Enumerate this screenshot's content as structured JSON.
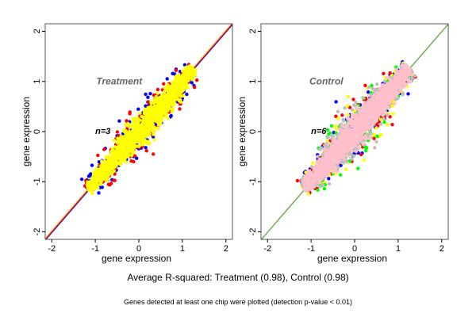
{
  "chart_data": [
    {
      "type": "scatter",
      "title": "Treatment",
      "annotation": "n=3",
      "xlabel": "gene expression",
      "ylabel": "gene expression",
      "xlim": [
        -2.15,
        2.15
      ],
      "ylim": [
        -2.15,
        2.15
      ],
      "xticks": [
        "-2",
        "-1",
        "0",
        "1",
        "2"
      ],
      "yticks": [
        "-2",
        "-1",
        "0",
        "1",
        "2"
      ],
      "cloud_range": [
        -1.15,
        1.25
      ],
      "series_colors": [
        "#0000ff",
        "#ff0000",
        "#ffff00"
      ],
      "diagonal_colors": [
        "#0000ff",
        "#ff0000",
        "#ffa500"
      ]
    },
    {
      "type": "scatter",
      "title": "Control",
      "annotation": "n=6",
      "xlabel": "gene expression",
      "ylabel": "gene expression",
      "xlim": [
        -2.15,
        2.15
      ],
      "ylim": [
        -2.15,
        2.15
      ],
      "xticks": [
        "-2",
        "-1",
        "0",
        "1",
        "2"
      ],
      "yticks": [
        "-2",
        "-1",
        "0",
        "1",
        "2"
      ],
      "cloud_range": [
        -1.15,
        1.25
      ],
      "series_colors": [
        "#0000ff",
        "#ff0000",
        "#ffff00",
        "#00ff00",
        "#bebebe",
        "#ffc0cb"
      ],
      "diagonal_colors": [
        "#00aa00",
        "#ffc0cb"
      ]
    }
  ],
  "caption": "Average R-squared: Treatment (0.98), Control (0.98)",
  "footnote": "Genes detected at least one chip were plotted (detection p-value < 0.01)"
}
